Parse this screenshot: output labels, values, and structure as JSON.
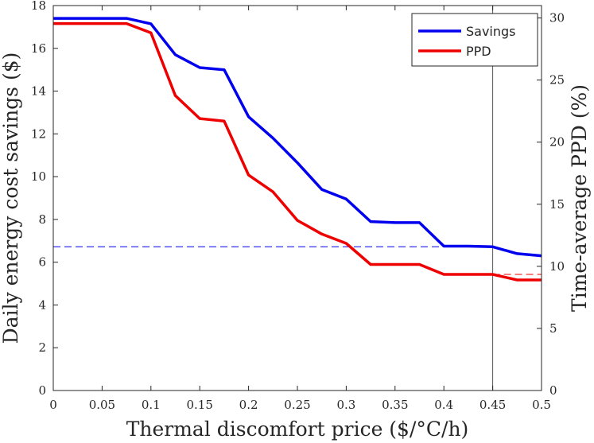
{
  "chart_data": {
    "type": "line",
    "xlabel": "Thermal discomfort price ($/°C/h)",
    "ylabel_left": "Daily energy cost savings ($)",
    "ylabel_right": "Time-average PPD (%)",
    "xlim": [
      0,
      0.5
    ],
    "ylim_left": [
      0,
      18
    ],
    "ylim_right": [
      0,
      31
    ],
    "x_ticks": [
      "0",
      "0.05",
      "0.1",
      "0.15",
      "0.2",
      "0.25",
      "0.3",
      "0.35",
      "0.4",
      "0.45",
      "0.5"
    ],
    "y_left_ticks": [
      "0",
      "2",
      "4",
      "6",
      "8",
      "10",
      "12",
      "14",
      "16",
      "18"
    ],
    "y_right_ticks": [
      "0",
      "5",
      "10",
      "15",
      "20",
      "25",
      "30"
    ],
    "x": [
      0,
      0.025,
      0.05,
      0.075,
      0.1,
      0.125,
      0.15,
      0.175,
      0.2,
      0.225,
      0.25,
      0.275,
      0.3,
      0.325,
      0.35,
      0.375,
      0.4,
      0.425,
      0.45,
      0.475,
      0.5
    ],
    "series": [
      {
        "name": "Savings",
        "axis": "left",
        "color": "#0000ee",
        "values": [
          17.4,
          17.4,
          17.4,
          17.4,
          17.15,
          15.7,
          15.1,
          15.0,
          12.8,
          11.8,
          10.65,
          9.4,
          8.95,
          7.9,
          7.85,
          7.85,
          6.75,
          6.75,
          6.72,
          6.4,
          6.3
        ]
      },
      {
        "name": "PPD",
        "axis": "right",
        "color": "#ee0000",
        "values": [
          29.55,
          29.55,
          29.55,
          29.55,
          28.8,
          23.75,
          21.9,
          21.7,
          17.35,
          16.0,
          13.7,
          12.6,
          11.85,
          10.15,
          10.15,
          10.15,
          9.35,
          9.35,
          9.35,
          8.9,
          8.9
        ]
      }
    ],
    "reference_lines": [
      {
        "type": "hline",
        "axis": "left",
        "value": 6.72,
        "x_range": [
          0,
          0.45
        ],
        "color": "#0000ee",
        "style": "dashed"
      },
      {
        "type": "hline",
        "axis": "right",
        "value": 9.35,
        "x_range": [
          0.45,
          0.5
        ],
        "color": "#ee0000",
        "style": "dashed"
      },
      {
        "type": "vline",
        "value": 0.45,
        "color": "#555555",
        "style": "solid"
      }
    ],
    "legend": {
      "position": "top-right",
      "entries": [
        "Savings",
        "PPD"
      ]
    },
    "grid": false
  }
}
